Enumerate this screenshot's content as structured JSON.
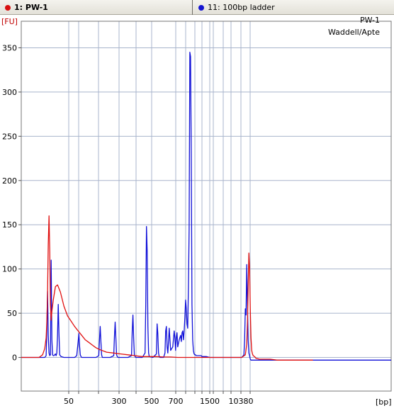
{
  "tabs": [
    {
      "label": "1: PW-1",
      "color": "#d81010"
    },
    {
      "label": "11: 100bp ladder",
      "color": "#1515d0"
    }
  ],
  "chart_data": {
    "type": "line",
    "title": "PW-1",
    "subtitle": "Waddell/Apte",
    "ylabel": "[FU]",
    "xlabel": "[bp]",
    "ylim": [
      -38,
      380
    ],
    "yticks": [
      0,
      50,
      100,
      150,
      200,
      250,
      300,
      350
    ],
    "xtick_labels": [
      "50",
      "300",
      "500",
      "700",
      "1500",
      "10380"
    ],
    "grid": true,
    "series": [
      {
        "name": "1: PW-1",
        "color": "#e01010",
        "x": [
          0,
          5,
          10,
          15,
          20,
          25,
          30,
          33,
          35,
          36,
          37,
          38,
          39,
          40,
          41,
          42,
          43,
          45,
          48,
          51,
          55,
          60,
          65,
          70,
          75,
          80,
          85,
          90,
          95,
          100,
          105,
          110,
          120,
          130,
          140,
          150,
          160,
          165,
          170,
          175,
          180,
          185,
          190,
          200,
          210,
          220,
          230,
          240,
          250,
          260,
          270,
          275,
          280,
          290,
          300,
          305,
          310,
          315,
          317,
          318,
          319,
          320,
          321,
          322,
          323,
          324,
          325,
          326,
          327,
          328,
          329,
          330,
          335,
          340,
          350,
          360,
          380,
          400,
          410
        ],
        "y": [
          0,
          0,
          0,
          0,
          0,
          0,
          3,
          10,
          22,
          40,
          72,
          128,
          160,
          120,
          60,
          42,
          52,
          65,
          80,
          82,
          74,
          58,
          47,
          41,
          35,
          30,
          25,
          20,
          17,
          14,
          11,
          9,
          6,
          5,
          4,
          3,
          2,
          1.5,
          1,
          1,
          1,
          1,
          1,
          0.5,
          0.5,
          0,
          0,
          0,
          0,
          0,
          0,
          0,
          0,
          0,
          0,
          0,
          0,
          3,
          15,
          40,
          80,
          118,
          100,
          55,
          22,
          8,
          4,
          2,
          1.5,
          1,
          0,
          -1,
          -2,
          -2,
          -2,
          -3,
          -3,
          -3,
          -3
        ]
      },
      {
        "name": "11: 100bp ladder",
        "color": "#1010d8",
        "x": [
          0,
          5,
          10,
          15,
          20,
          25,
          30,
          33,
          35,
          36,
          37,
          38,
          39,
          40,
          41,
          42,
          43,
          44,
          45,
          46,
          47,
          48,
          49,
          50,
          51,
          52,
          53,
          54,
          56,
          60,
          65,
          70,
          75,
          78,
          80,
          81,
          82,
          83,
          84,
          85,
          86,
          88,
          95,
          100,
          105,
          109,
          110,
          111,
          112,
          113,
          114,
          115,
          120,
          125,
          130,
          131,
          132,
          133,
          134,
          135,
          136,
          140,
          150,
          155,
          156,
          157,
          158,
          159,
          160,
          161,
          165,
          170,
          174,
          175,
          176,
          177,
          178,
          179,
          180,
          185,
          190,
          191,
          192,
          193,
          194,
          195,
          196,
          200,
          202,
          203,
          204,
          205,
          206,
          207,
          208,
          210,
          213,
          215,
          216,
          217,
          218,
          219,
          220,
          222,
          224,
          225,
          226,
          227,
          228,
          229,
          230,
          231,
          232,
          233,
          234,
          235,
          236,
          237,
          238,
          239,
          240,
          241,
          242,
          243,
          244,
          245,
          246,
          247,
          248,
          249,
          250,
          251,
          252,
          253,
          254,
          255,
          256,
          257,
          258,
          260,
          265,
          270,
          280,
          290,
          300,
          305,
          310,
          313,
          314,
          315,
          316,
          317,
          318,
          319,
          320,
          321,
          322,
          323,
          324,
          325,
          330,
          340,
          360,
          380,
          400,
          420,
          440,
          460,
          480,
          500,
          520
        ],
        "y": [
          0,
          0,
          0,
          0,
          0,
          0,
          0,
          0,
          2,
          30,
          75,
          25,
          5,
          2,
          3,
          110,
          20,
          3,
          2,
          2,
          3,
          4,
          2,
          5,
          25,
          60,
          28,
          3,
          1,
          0,
          0,
          0,
          0,
          2,
          18,
          27,
          13,
          3,
          1,
          0,
          0,
          0,
          0,
          0,
          0,
          2,
          20,
          35,
          18,
          3,
          0,
          0,
          0,
          0,
          2,
          24,
          40,
          22,
          3,
          1,
          0,
          0,
          0,
          2,
          30,
          48,
          22,
          3,
          1,
          0,
          0,
          0,
          5,
          60,
          148,
          120,
          35,
          5,
          1,
          0,
          4,
          38,
          27,
          5,
          1,
          0,
          0,
          0,
          5,
          30,
          35,
          12,
          5,
          18,
          33,
          8,
          12,
          30,
          22,
          8,
          22,
          28,
          12,
          20,
          25,
          18,
          28,
          30,
          20,
          30,
          45,
          65,
          55,
          38,
          33,
          80,
          145,
          345,
          340,
          230,
          60,
          20,
          8,
          4,
          3,
          3,
          2,
          2,
          2,
          2,
          2,
          2,
          2,
          2,
          1,
          1,
          1,
          1,
          1,
          1,
          0,
          0,
          0,
          0,
          0,
          0,
          0,
          3,
          20,
          55,
          48,
          105,
          60,
          20,
          5,
          2,
          -2,
          -3,
          -3,
          -3,
          -3,
          -3,
          -3,
          -3,
          -3,
          -3,
          -3,
          -3,
          -3,
          -3,
          -3
        ]
      }
    ]
  }
}
